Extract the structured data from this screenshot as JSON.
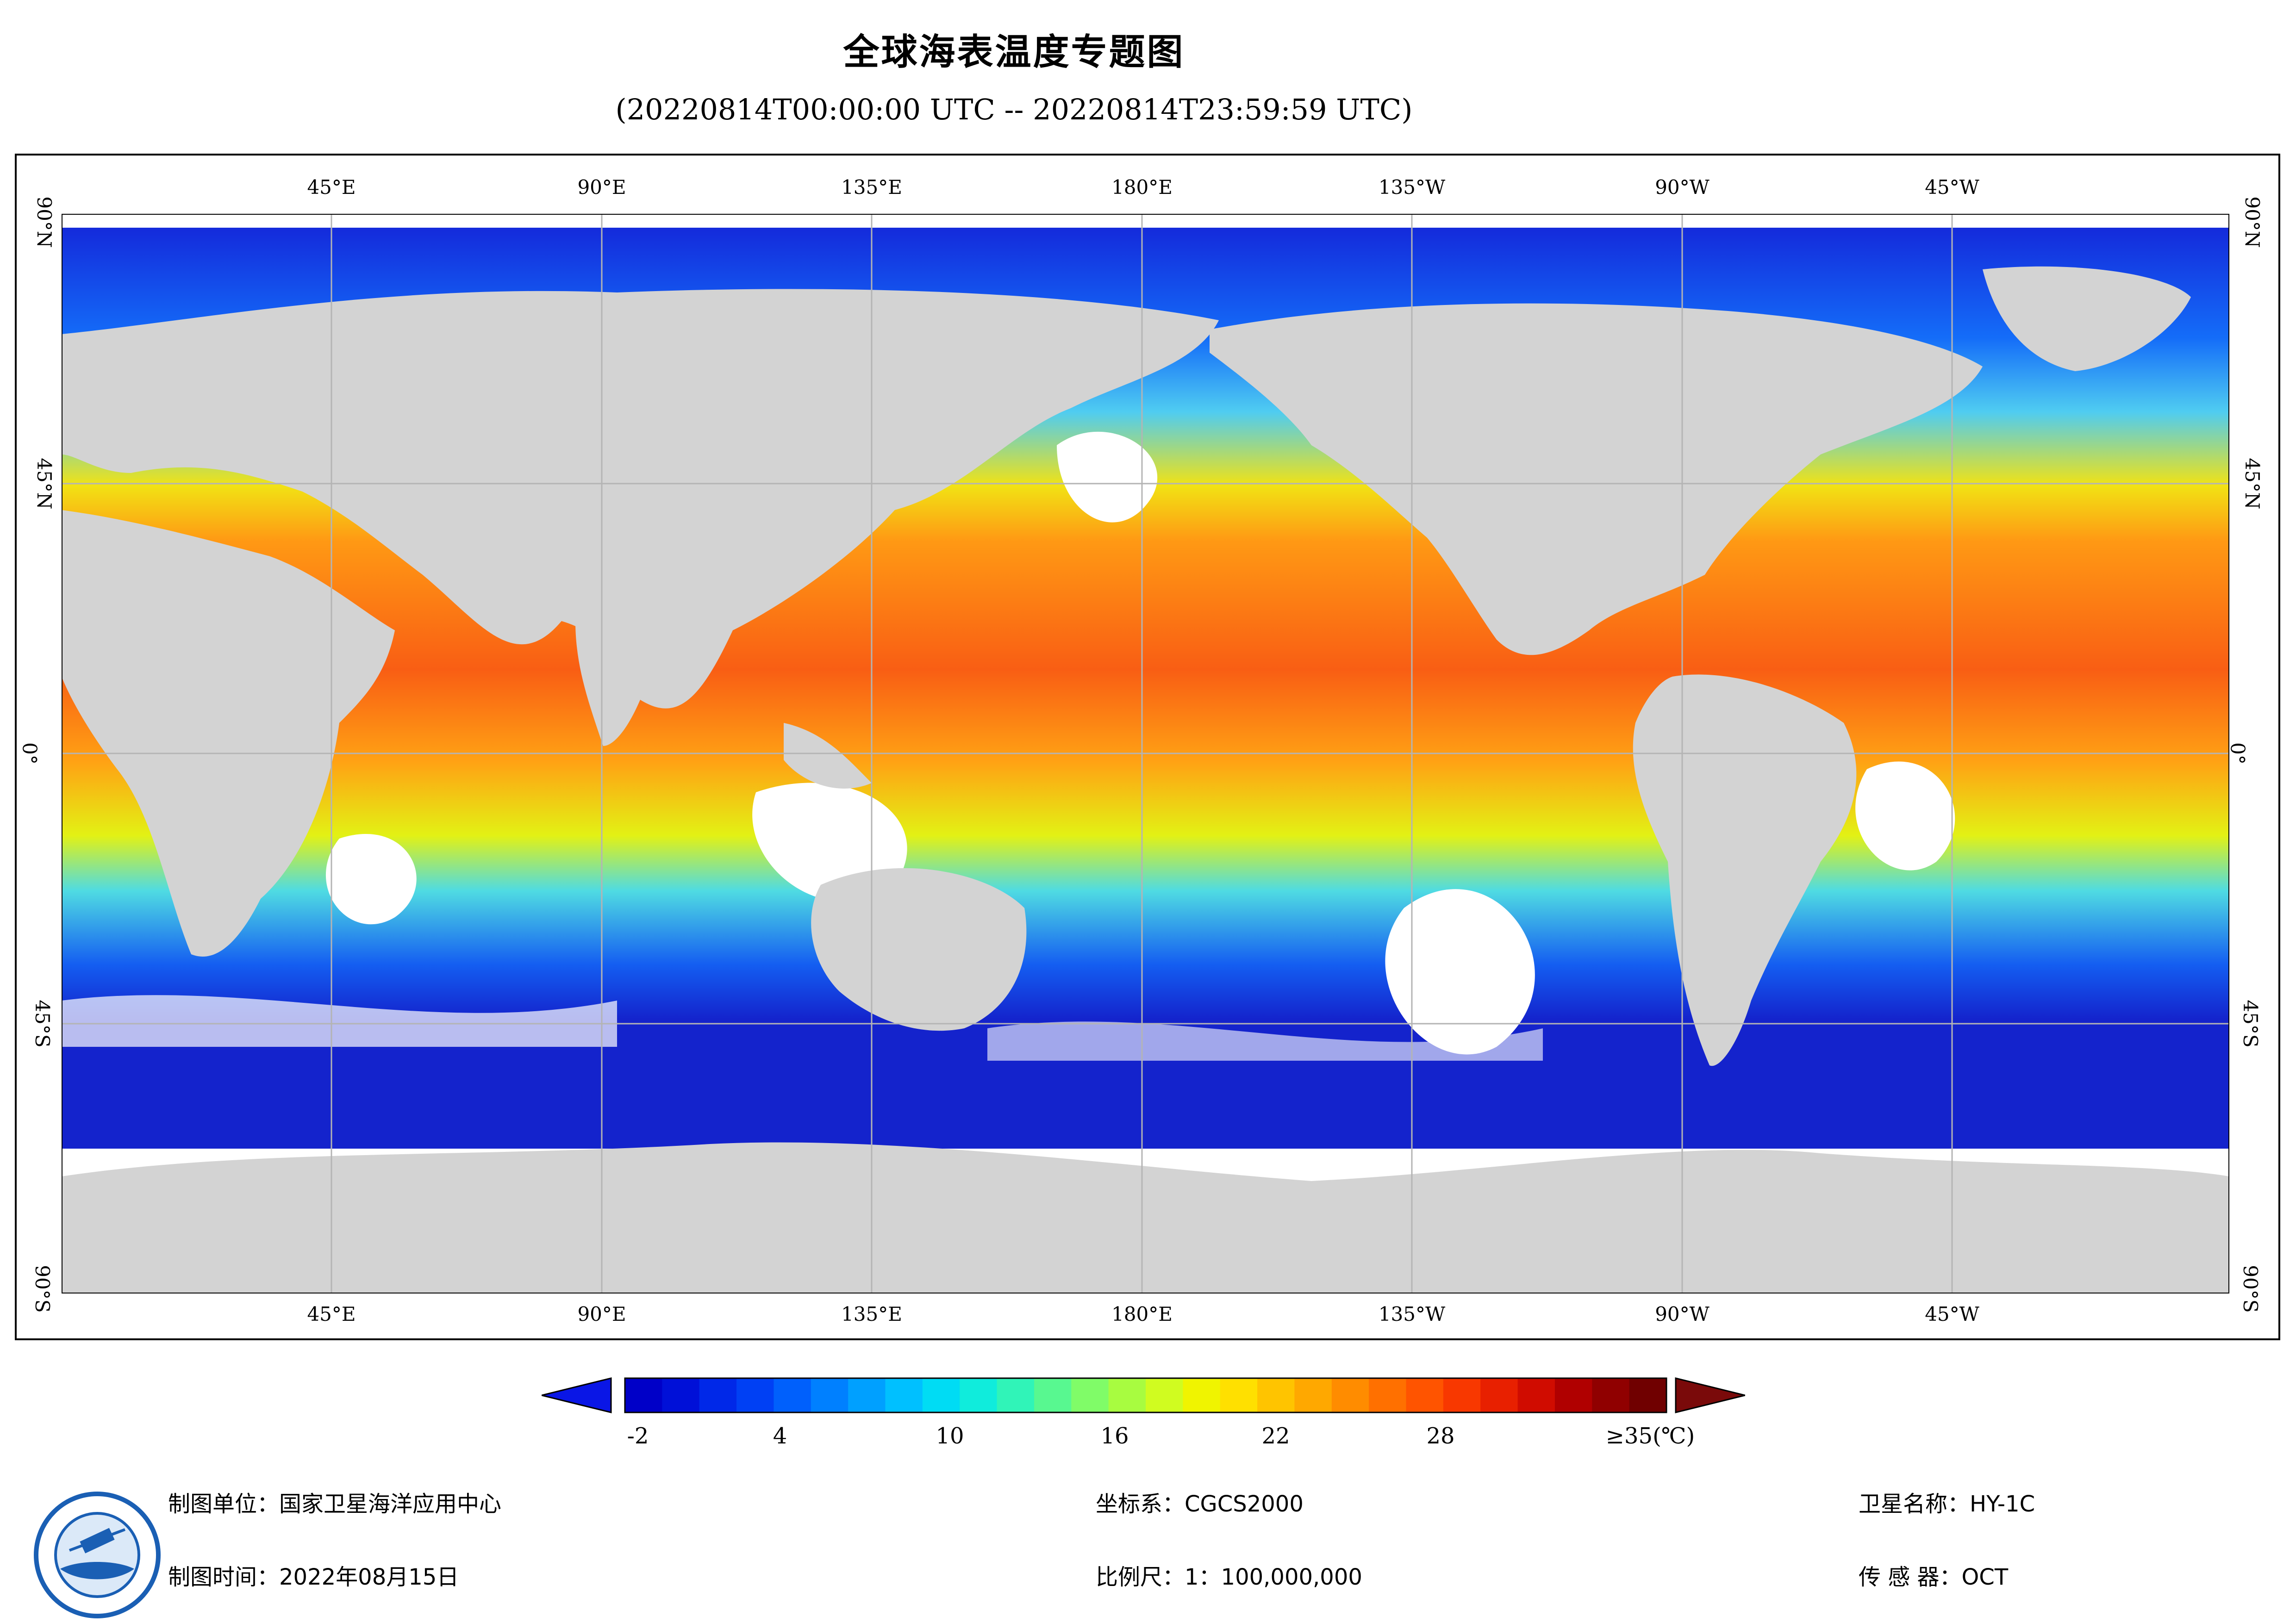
{
  "title": "全球海表温度专题图",
  "subtitle": "(20220814T00:00:00 UTC -- 20220814T23:59:59 UTC)",
  "map": {
    "longitude_labels": [
      "45°E",
      "90°E",
      "135°E",
      "180°E",
      "135°W",
      "90°W",
      "45°W"
    ],
    "latitude_labels": [
      "90°N",
      "45°N",
      "0°",
      "45°S",
      "90°S"
    ],
    "land_color": "#d3d3d3",
    "no_data_color": "#ffffff",
    "graticule_color": "#b4b4b4"
  },
  "colorbar": {
    "tick_labels": [
      "-2",
      "4",
      "10",
      "16",
      "22",
      "28",
      "≥35(℃)"
    ],
    "under_color": "#0a16e6",
    "over_color": "#7a0a0a",
    "colors": [
      "#0000c8",
      "#0010d8",
      "#0028e8",
      "#0040f4",
      "#0060fc",
      "#0080ff",
      "#00a0ff",
      "#00c0ff",
      "#00dcf4",
      "#10ecdc",
      "#30f4b8",
      "#58f890",
      "#80fc68",
      "#a8fc40",
      "#d0fc20",
      "#f0f400",
      "#ffe000",
      "#ffc400",
      "#ffa800",
      "#ff8c00",
      "#ff7000",
      "#ff5400",
      "#f83800",
      "#e82000",
      "#d00c00",
      "#b00000",
      "#900000",
      "#700000"
    ]
  },
  "footer": {
    "unit": "制图单位：国家卫星海洋应用中心",
    "date": "制图时间：2022年08月15日",
    "crs": "坐标系：CGCS2000",
    "scale": "比例尺：1：100,000,000",
    "satellite": "卫星名称：HY-1C",
    "sensor": "传 感 器：OCT"
  }
}
